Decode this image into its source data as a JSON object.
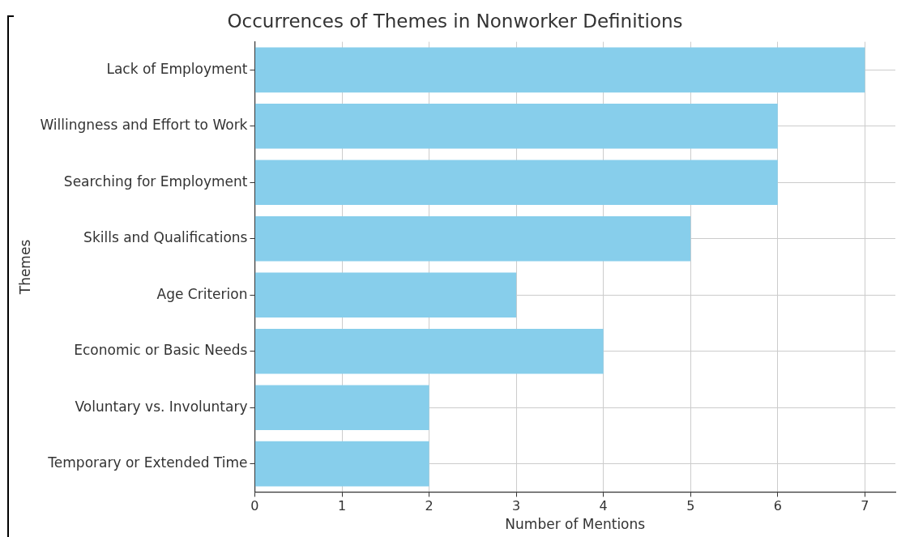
{
  "chart_data": {
    "type": "bar",
    "orientation": "horizontal",
    "title": "Occurrences of Themes in Nonworker Definitions",
    "xlabel": "Number of Mentions",
    "ylabel": "Themes",
    "categories": [
      "Lack of Employment",
      "Willingness and Effort to Work",
      "Searching for Employment",
      "Skills and Qualifications",
      "Age Criterion",
      "Economic or Basic Needs",
      "Voluntary vs. Involuntary",
      "Temporary or Extended Time"
    ],
    "values": [
      7,
      6,
      6,
      5,
      3,
      4,
      2,
      2
    ],
    "color": "#87ceeb",
    "xlim": [
      0,
      7.35
    ],
    "xticks": [
      0,
      1,
      2,
      3,
      4,
      5,
      6,
      7
    ],
    "grid": true,
    "legend": false
  }
}
